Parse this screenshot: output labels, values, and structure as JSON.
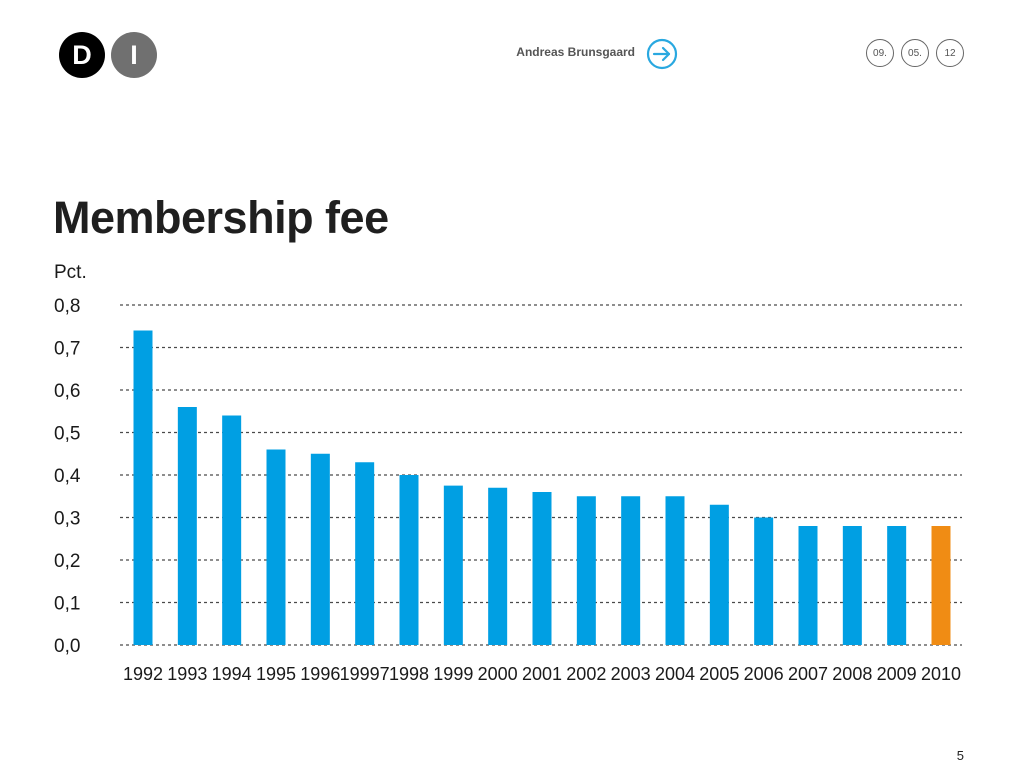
{
  "header": {
    "logo_letters": [
      "D",
      "I"
    ],
    "author": "Andreas Brunsgaard",
    "arrow_icon": "arrow-right-circle-icon",
    "date_parts": [
      "09.",
      "05.",
      "12"
    ],
    "accent_color": "#29a8e0"
  },
  "title": "Membership fee",
  "chart_data": {
    "type": "bar",
    "title": "",
    "xlabel": "",
    "ylabel": "Pct.",
    "ylim": [
      0,
      0.8
    ],
    "yticks": [
      0,
      0.1,
      0.2,
      0.3,
      0.4,
      0.5,
      0.6,
      0.7,
      0.8
    ],
    "ytick_labels": [
      "0,0",
      "0,1",
      "0,2",
      "0,3",
      "0,4",
      "0,5",
      "0,6",
      "0,7",
      "0,8"
    ],
    "grid": true,
    "categories": [
      "1992",
      "1993",
      "1994",
      "1995",
      "1996",
      "19997",
      "1998",
      "1999",
      "2000",
      "2001",
      "2002",
      "2003",
      "2004",
      "2005",
      "2006",
      "2007",
      "2008",
      "2009",
      "2010"
    ],
    "values": [
      0.74,
      0.56,
      0.54,
      0.46,
      0.45,
      0.43,
      0.4,
      0.375,
      0.37,
      0.36,
      0.35,
      0.35,
      0.35,
      0.33,
      0.3,
      0.28,
      0.28,
      0.28,
      0.28
    ],
    "bar_color": "#009fe3",
    "highlight_color": "#f08c14",
    "highlight_category": "2010"
  },
  "footer": {
    "page_number": "5"
  }
}
